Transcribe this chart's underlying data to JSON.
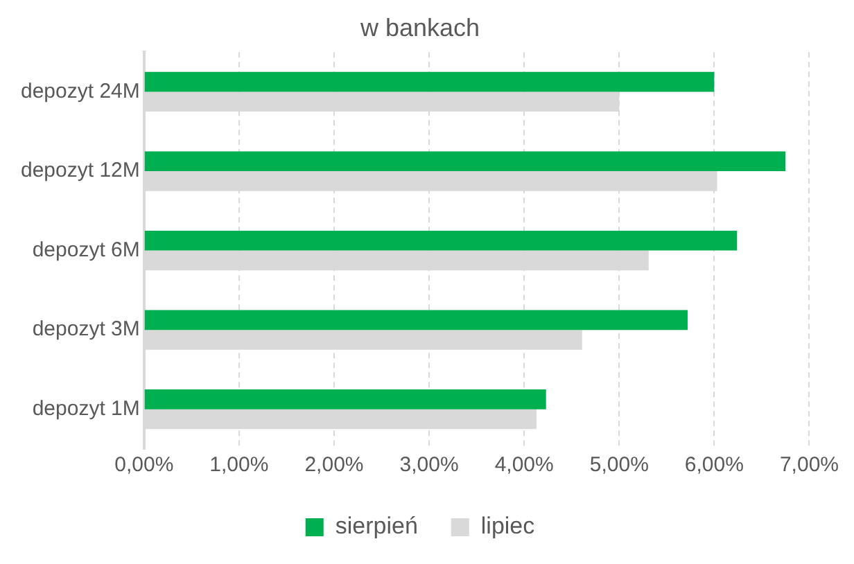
{
  "chart_data": {
    "type": "bar",
    "orientation": "horizontal",
    "title": "w bankach",
    "categories": [
      "depozyt 24M",
      "depozyt 12M",
      "depozyt 6M",
      "depozyt 3M",
      "depozyt 1M"
    ],
    "series": [
      {
        "name": "sierpień",
        "color": "#00b050",
        "values": [
          6.0,
          6.75,
          6.24,
          5.72,
          4.23
        ]
      },
      {
        "name": "lipiec",
        "color": "#d9d9d9",
        "values": [
          5.0,
          6.03,
          5.31,
          4.61,
          4.13
        ]
      }
    ],
    "xlim": [
      0,
      7
    ],
    "xticks": [
      {
        "value": 0,
        "label": "0,00%"
      },
      {
        "value": 1,
        "label": "1,00%"
      },
      {
        "value": 2,
        "label": "2,00%"
      },
      {
        "value": 3,
        "label": "3,00%"
      },
      {
        "value": 4,
        "label": "4,00%"
      },
      {
        "value": 5,
        "label": "5,00%"
      },
      {
        "value": 6,
        "label": "6,00%"
      },
      {
        "value": 7,
        "label": "7,00%"
      }
    ],
    "grid": "x",
    "legend": "bottom"
  }
}
